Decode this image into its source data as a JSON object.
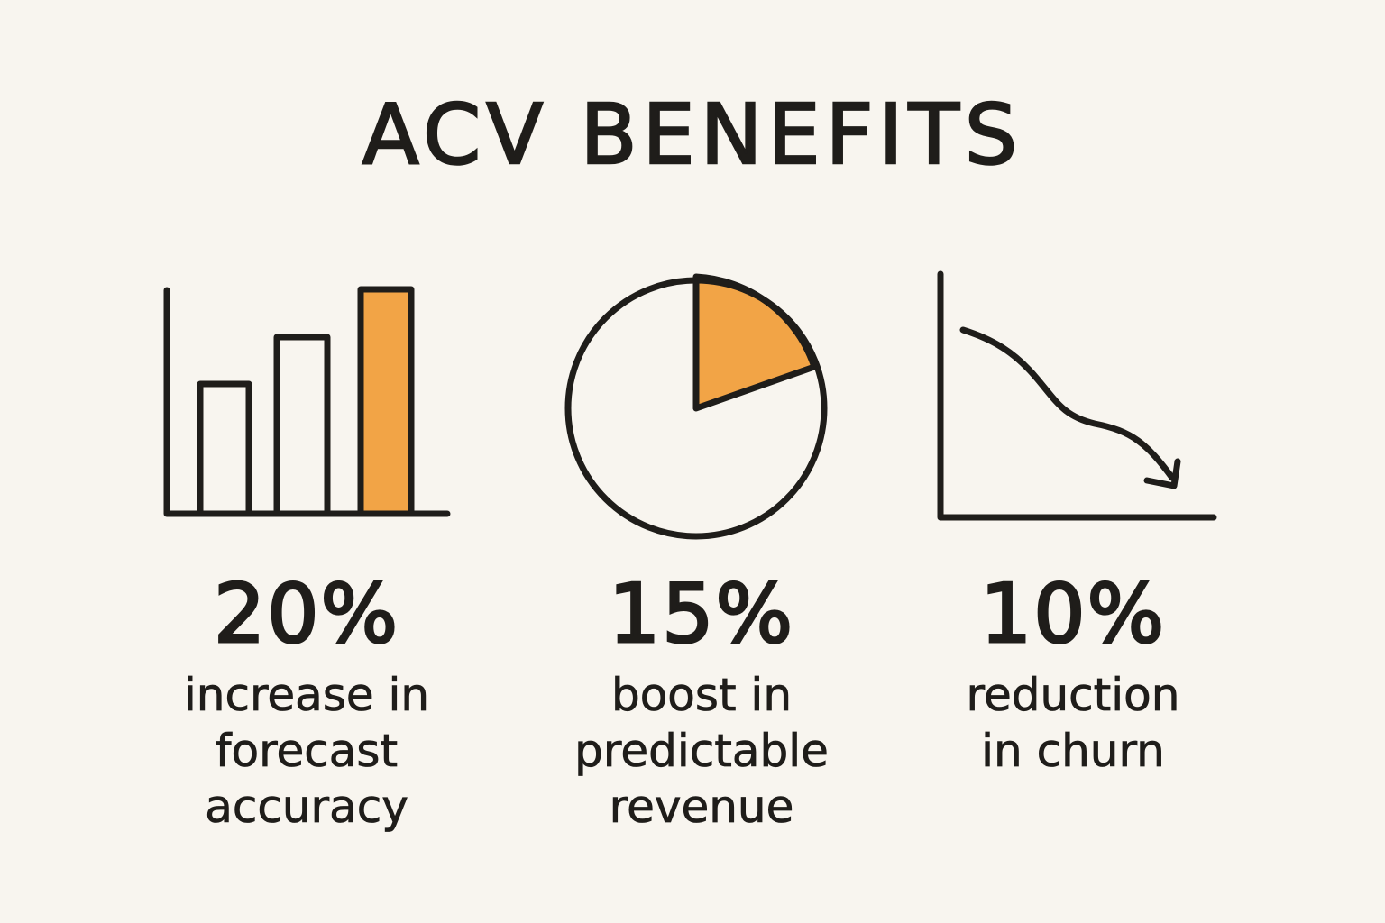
{
  "title": "ACV BENEFITS",
  "colors": {
    "background": "#f8f5ef",
    "ink": "#1f1d1a",
    "accent": "#f2a446"
  },
  "benefits": [
    {
      "icon": "bar-chart-icon",
      "value": "20%",
      "lines": [
        "increase in",
        "forecast",
        "accuracy"
      ]
    },
    {
      "icon": "pie-chart-icon",
      "value": "15%",
      "lines": [
        "boost in",
        "predictable",
        "revenue"
      ]
    },
    {
      "icon": "declining-line-chart-icon",
      "value": "10%",
      "lines": [
        "reduction",
        "in churn"
      ]
    }
  ]
}
